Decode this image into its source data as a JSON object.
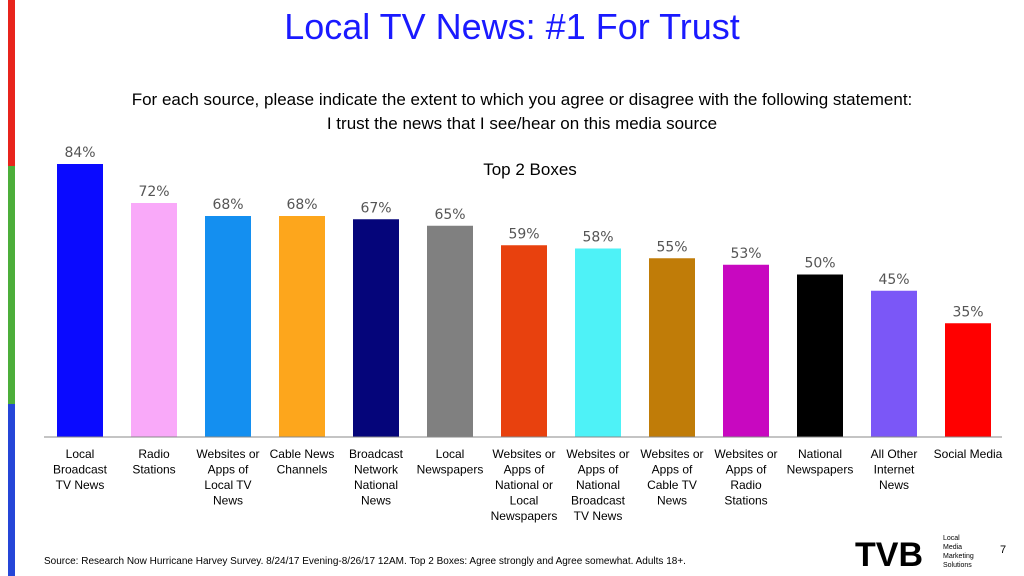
{
  "title": "Local TV News: #1 For Trust",
  "question_line1": "For each source, please indicate the extent to which you agree or disagree with the following statement:",
  "question_line2": "I trust the news that I see/hear on this media source",
  "source": "Source: Research Now Hurricane Harvey Survey. 8/24/17 Evening-8/26/17 12AM. Top 2 Boxes: Agree strongly and Agree somewhat. Adults 18+.",
  "page_number": "7",
  "logo": {
    "main": "TVB",
    "sub": [
      "Local",
      "Media",
      "Marketing",
      "Solutions"
    ]
  },
  "side_bar_colors": [
    "#e8241c",
    "#4cae3a",
    "#2546d8"
  ],
  "chart_data": {
    "type": "bar",
    "title": "Top 2 Boxes",
    "xlabel": "",
    "ylabel": "",
    "ylim": [
      0,
      100
    ],
    "grid": false,
    "value_suffix": "%",
    "categories": [
      [
        "Local",
        "Broadcast",
        "TV News"
      ],
      [
        "Radio",
        "Stations"
      ],
      [
        "Websites or",
        "Apps of",
        "Local TV",
        "News"
      ],
      [
        "Cable News",
        "Channels"
      ],
      [
        "Broadcast",
        "Network",
        "National",
        "News"
      ],
      [
        "Local",
        "Newspapers"
      ],
      [
        "Websites or",
        "Apps of",
        "National or",
        "Local",
        "Newspapers"
      ],
      [
        "Websites or",
        "Apps of",
        "National",
        "Broadcast",
        "TV News"
      ],
      [
        "Websites or",
        "Apps of",
        "Cable TV",
        "News"
      ],
      [
        "Websites or",
        "Apps of",
        "Radio",
        "Stations"
      ],
      [
        "National",
        "Newspapers"
      ],
      [
        "All Other",
        "Internet",
        "News"
      ],
      [
        "Social Media"
      ]
    ],
    "values": [
      84,
      72,
      68,
      68,
      67,
      65,
      59,
      58,
      55,
      53,
      50,
      45,
      35
    ],
    "colors": [
      "#0a0aff",
      "#f9a9f9",
      "#148ff0",
      "#fda61c",
      "#05057a",
      "#808080",
      "#e8410e",
      "#4ef2f7",
      "#c07c08",
      "#c808c0",
      "#000000",
      "#7b57f7",
      "#ff0000"
    ]
  }
}
